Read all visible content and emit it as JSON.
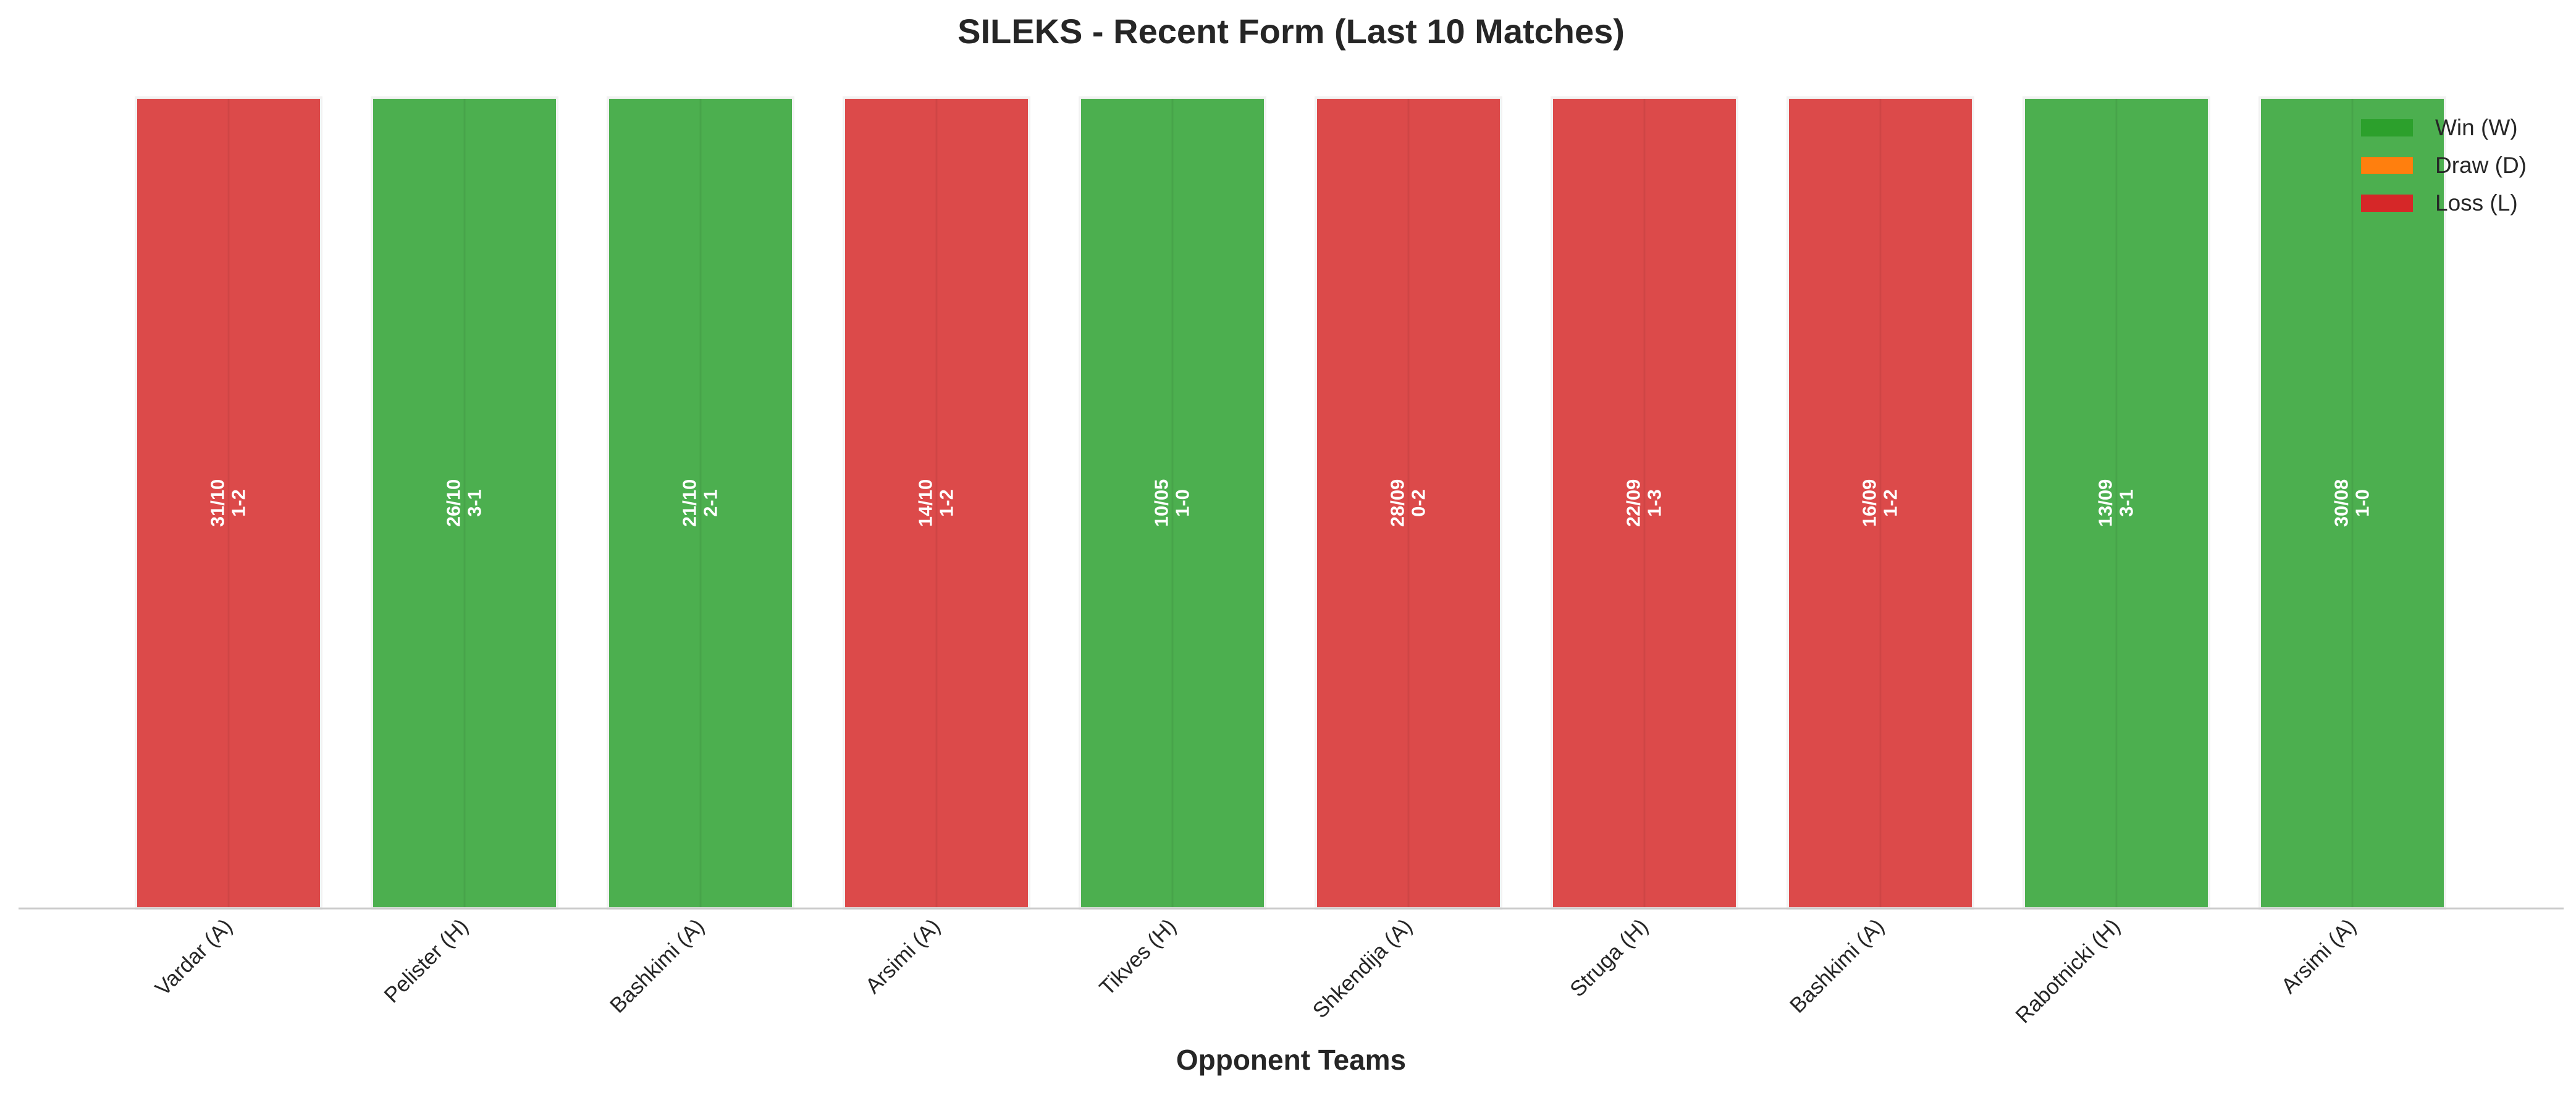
{
  "chart_data": {
    "type": "bar",
    "title": "SILEKS - Recent Form (Last 10 Matches)",
    "xlabel": "Opponent Teams",
    "ylabel": "",
    "ylim": [
      0,
      1
    ],
    "grid": false,
    "legend_position": "top-right",
    "categories": [
      "Vardar (A)",
      "Pelister (H)",
      "Bashkimi (A)",
      "Arsimi (A)",
      "Tikves (H)",
      "Shkendija (A)",
      "Struga (H)",
      "Bashkimi (A)",
      "Rabotnicki (H)",
      "Arsimi (A)"
    ],
    "values": [
      1,
      1,
      1,
      1,
      1,
      1,
      1,
      1,
      1,
      1
    ],
    "results": [
      "L",
      "W",
      "W",
      "L",
      "W",
      "L",
      "L",
      "L",
      "W",
      "W"
    ],
    "dates": [
      "31/10",
      "26/10",
      "21/10",
      "14/10",
      "10/05",
      "28/09",
      "22/09",
      "16/09",
      "13/09",
      "30/08"
    ],
    "scores": [
      "1-2",
      "3-1",
      "2-1",
      "1-2",
      "1-0",
      "0-2",
      "1-3",
      "1-2",
      "3-1",
      "1-0"
    ],
    "legend": [
      {
        "key": "W",
        "label": "Win (W)",
        "color": "#2ca02c"
      },
      {
        "key": "D",
        "label": "Draw (D)",
        "color": "#ff7f0e"
      },
      {
        "key": "L",
        "label": "Loss (L)",
        "color": "#d62728"
      }
    ],
    "bar_colors": {
      "W": "#4caf4f",
      "D": "#ff7f0e",
      "L": "#dc4a4a"
    }
  }
}
